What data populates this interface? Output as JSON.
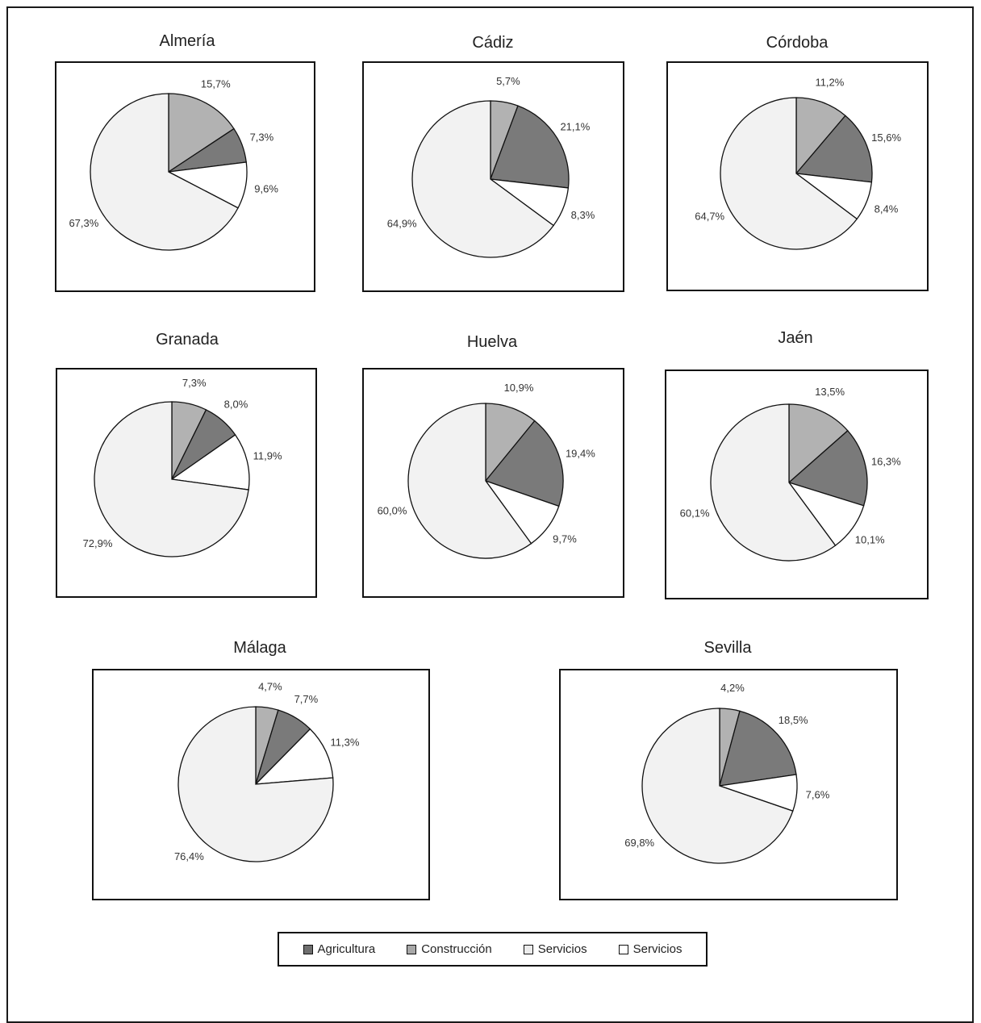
{
  "colors": {
    "agricultura": "#b2b2b2",
    "construccion": "#7a7a7a",
    "industria": "#ffffff",
    "servicios": "#f2f2f2",
    "stroke": "#111111"
  },
  "legend": [
    {
      "label": "Agricultura",
      "color": "#6e6e6e"
    },
    {
      "label": "Construcción",
      "color": "#a8a8a8"
    },
    {
      "label": "Servicios",
      "color": "#ececec"
    },
    {
      "label": "Servicios",
      "color": "#ffffff"
    }
  ],
  "chart_data": [
    {
      "type": "pie",
      "title": "Almería",
      "slices": [
        {
          "value": 15.7,
          "label": "15,7%",
          "color": "#b2b2b2"
        },
        {
          "value": 7.3,
          "label": "7,3%",
          "color": "#7a7a7a"
        },
        {
          "value": 9.6,
          "label": "9,6%",
          "color": "#ffffff"
        },
        {
          "value": 67.3,
          "label": "67,3%",
          "color": "#f2f2f2"
        }
      ]
    },
    {
      "type": "pie",
      "title": "Cádiz",
      "slices": [
        {
          "value": 5.7,
          "label": "5,7%",
          "color": "#b2b2b2"
        },
        {
          "value": 21.1,
          "label": "21,1%",
          "color": "#7a7a7a"
        },
        {
          "value": 8.3,
          "label": "8,3%",
          "color": "#ffffff"
        },
        {
          "value": 64.9,
          "label": "64,9%",
          "color": "#f2f2f2"
        }
      ]
    },
    {
      "type": "pie",
      "title": "Córdoba",
      "slices": [
        {
          "value": 11.2,
          "label": "11,2%",
          "color": "#b2b2b2"
        },
        {
          "value": 15.6,
          "label": "15,6%",
          "color": "#7a7a7a"
        },
        {
          "value": 8.4,
          "label": "8,4%",
          "color": "#ffffff"
        },
        {
          "value": 64.7,
          "label": "64,7%",
          "color": "#f2f2f2"
        }
      ]
    },
    {
      "type": "pie",
      "title": "Granada",
      "slices": [
        {
          "value": 7.3,
          "label": "7,3%",
          "color": "#b2b2b2"
        },
        {
          "value": 8.0,
          "label": "8,0%",
          "color": "#7a7a7a"
        },
        {
          "value": 11.9,
          "label": "11,9%",
          "color": "#ffffff"
        },
        {
          "value": 72.9,
          "label": "72,9%",
          "color": "#f2f2f2"
        }
      ]
    },
    {
      "type": "pie",
      "title": "Huelva",
      "slices": [
        {
          "value": 10.9,
          "label": "10,9%",
          "color": "#b2b2b2"
        },
        {
          "value": 19.4,
          "label": "19,4%",
          "color": "#7a7a7a"
        },
        {
          "value": 9.7,
          "label": "9,7%",
          "color": "#ffffff"
        },
        {
          "value": 60.0,
          "label": "60,0%",
          "color": "#f2f2f2"
        }
      ]
    },
    {
      "type": "pie",
      "title": "Jaén",
      "slices": [
        {
          "value": 13.5,
          "label": "13,5%",
          "color": "#b2b2b2"
        },
        {
          "value": 16.3,
          "label": "16,3%",
          "color": "#7a7a7a"
        },
        {
          "value": 10.1,
          "label": "10,1%",
          "color": "#ffffff"
        },
        {
          "value": 60.1,
          "label": "60,1%",
          "color": "#f2f2f2"
        }
      ]
    },
    {
      "type": "pie",
      "title": "Málaga",
      "slices": [
        {
          "value": 4.7,
          "label": "4,7%",
          "color": "#b2b2b2"
        },
        {
          "value": 7.7,
          "label": "7,7%",
          "color": "#7a7a7a"
        },
        {
          "value": 11.3,
          "label": "11,3%",
          "color": "#ffffff"
        },
        {
          "value": 76.4,
          "label": "76,4%",
          "color": "#f2f2f2"
        }
      ]
    },
    {
      "type": "pie",
      "title": "Sevilla",
      "slices": [
        {
          "value": 4.2,
          "label": "4,2%",
          "color": "#b2b2b2"
        },
        {
          "value": 18.5,
          "label": "18,5%",
          "color": "#7a7a7a"
        },
        {
          "value": 7.6,
          "label": "7,6%",
          "color": "#ffffff"
        },
        {
          "value": 69.8,
          "label": "69,8%",
          "color": "#f2f2f2"
        }
      ]
    }
  ]
}
